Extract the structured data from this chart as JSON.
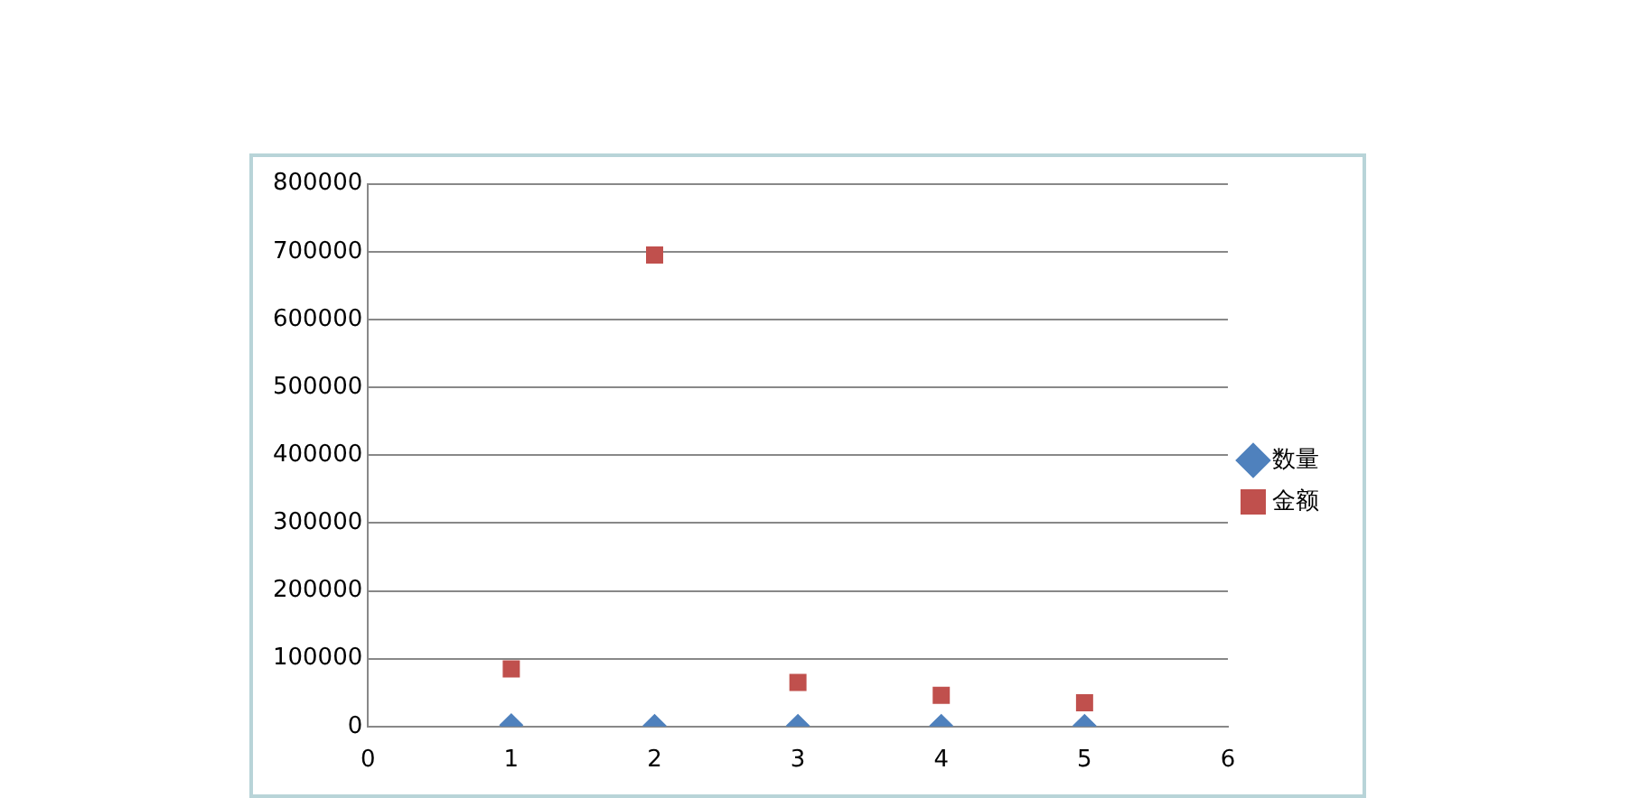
{
  "chart_data": {
    "type": "scatter",
    "xlim": [
      0,
      6
    ],
    "xticks": [
      0,
      1,
      2,
      3,
      4,
      5,
      6
    ],
    "ylim": [
      0,
      800000
    ],
    "yticks": [
      0,
      100000,
      200000,
      300000,
      400000,
      500000,
      600000,
      700000,
      800000
    ],
    "grid": "y",
    "legend": "right",
    "x": [
      1,
      2,
      3,
      4,
      5
    ],
    "series": [
      {
        "name": "数量",
        "color": "#4f81bd",
        "marker": "diamond",
        "values": [
          2000,
          1000,
          1000,
          1000,
          1000
        ]
      },
      {
        "name": "金额",
        "color": "#c0504d",
        "marker": "square",
        "values": [
          85000,
          695000,
          65000,
          46000,
          35000
        ]
      }
    ]
  }
}
